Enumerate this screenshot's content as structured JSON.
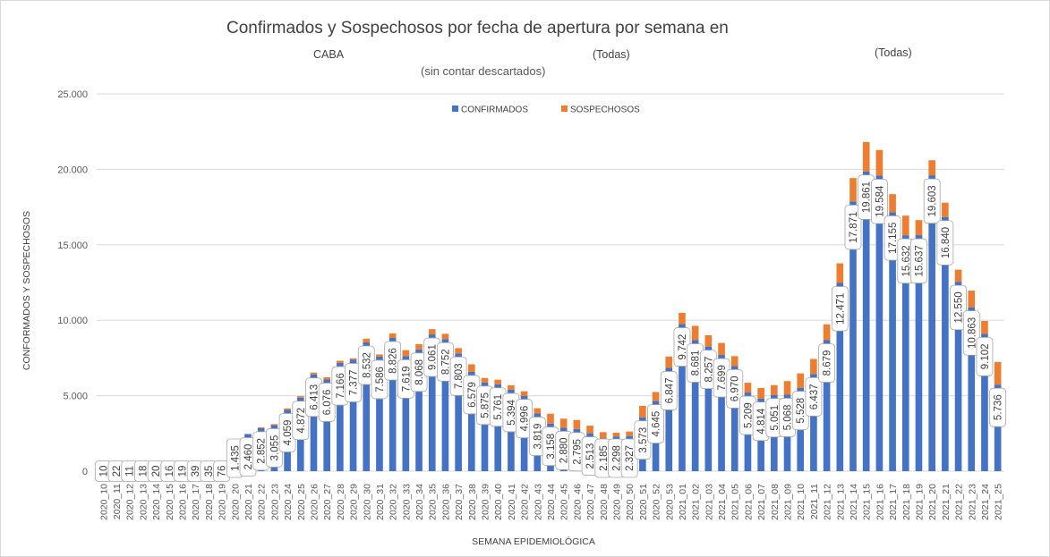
{
  "header": {
    "title": "Confirmados y Sospechosos por fecha de apertura por semana en",
    "location": "CABA",
    "filter_1": "(Todas)",
    "filter_2": "(Todas)",
    "subtitle": "(sin contar descartados)"
  },
  "chart_data": {
    "type": "bar",
    "stacked": true,
    "title": "Confirmados y Sospechosos por fecha de apertura por semana en",
    "subtitle": "(sin contar descartados)",
    "xlabel": "SEMANA EPIDEMIOLÓGICA",
    "ylabel": "CONFORMADOS Y SOSPECHOSOS",
    "ylim": [
      0,
      25000
    ],
    "yticks": [
      0,
      5000,
      10000,
      15000,
      20000,
      25000
    ],
    "ytick_labels": [
      "0",
      "5.000",
      "10.000",
      "15.000",
      "20.000",
      "25.000"
    ],
    "grid": true,
    "legend_position": "top",
    "categories": [
      "2020_10",
      "2020_11",
      "2020_12",
      "2020_13",
      "2020_14",
      "2020_15",
      "2020_16",
      "2020_17",
      "2020_18",
      "2020_19",
      "2020_20",
      "2020_21",
      "2020_22",
      "2020_23",
      "2020_24",
      "2020_25",
      "2020_26",
      "2020_27",
      "2020_28",
      "2020_29",
      "2020_30",
      "2020_31",
      "2020_32",
      "2020_33",
      "2020_34",
      "2020_35",
      "2020_36",
      "2020_37",
      "2020_38",
      "2020_39",
      "2020_40",
      "2020_41",
      "2020_42",
      "2020_43",
      "2020_44",
      "2020_45",
      "2020_46",
      "2020_47",
      "2020_48",
      "2020_49",
      "2020_50",
      "2020_51",
      "2020_52",
      "2020_53",
      "2021_01",
      "2021_02",
      "2021_03",
      "2021_04",
      "2021_05",
      "2021_06",
      "2021_07",
      "2021_08",
      "2021_09",
      "2021_10",
      "2021_11",
      "2021_12",
      "2021_13",
      "2021_14",
      "2021_15",
      "2021_16",
      "2021_17",
      "2021_18",
      "2021_19",
      "2021_20",
      "2021_21",
      "2021_22",
      "2021_23",
      "2021_24",
      "2021_25"
    ],
    "series": [
      {
        "name": "CONFIRMADOS",
        "color": "#4472c4",
        "values": [
          10,
          22,
          11,
          18,
          20,
          16,
          19,
          39,
          35,
          76,
          1435,
          2460,
          2852,
          3055,
          4059,
          4872,
          6413,
          6076,
          7166,
          7377,
          8532,
          7586,
          8826,
          7619,
          8068,
          9061,
          8752,
          7803,
          6579,
          5875,
          5761,
          5394,
          4996,
          3819,
          3158,
          2880,
          2795,
          2513,
          2185,
          2298,
          2327,
          3573,
          4645,
          6847,
          9742,
          8681,
          8257,
          7699,
          6970,
          5209,
          4814,
          5051,
          5068,
          5528,
          6437,
          8679,
          12471,
          17871,
          19861,
          19584,
          17155,
          15632,
          15637,
          19603,
          16840,
          12550,
          10863,
          9102,
          5736
        ],
        "labels": [
          "10",
          "22",
          "11",
          "18",
          "20",
          "16",
          "19",
          "39",
          "35",
          "76",
          "1.435",
          "2.460",
          "2.852",
          "3.055",
          "4.059",
          "4.872",
          "6.413",
          "6.076",
          "7.166",
          "7.377",
          "8.532",
          "7.586",
          "8.826",
          "7.619",
          "8.068",
          "9.061",
          "8.752",
          "7.803",
          "6.579",
          "5.875",
          "5.761",
          "5.394",
          "4.996",
          "3.819",
          "3.158",
          "2.880",
          "2.795",
          "2.513",
          "2.185",
          "2.298",
          "2.327",
          "3.573",
          "4.645",
          "6.847",
          "9.742",
          "8.681",
          "8.257",
          "7.699",
          "6.970",
          "5.209",
          "4.814",
          "5.051",
          "5.068",
          "5.528",
          "6.437",
          "8.679",
          "12.471",
          "17.871",
          "19.861",
          "19.584",
          "17.155",
          "15.632",
          "15.637",
          "19.603",
          "16.840",
          "12.550",
          "10.863",
          "9.102",
          "5.736"
        ]
      },
      {
        "name": "SOSPECHOSOS",
        "color": "#ed7d31",
        "values": [
          0,
          0,
          0,
          0,
          0,
          0,
          0,
          0,
          0,
          0,
          0,
          0,
          60,
          60,
          100,
          100,
          120,
          150,
          150,
          100,
          250,
          150,
          300,
          400,
          350,
          350,
          350,
          350,
          500,
          300,
          300,
          300,
          300,
          350,
          650,
          600,
          600,
          500,
          400,
          250,
          300,
          750,
          600,
          750,
          750,
          950,
          750,
          800,
          650,
          650,
          700,
          650,
          900,
          950,
          1000,
          1050,
          1300,
          1550,
          1950,
          1700,
          1200,
          1300,
          1000,
          1000,
          950,
          800,
          1100,
          850,
          1500
        ]
      }
    ]
  }
}
